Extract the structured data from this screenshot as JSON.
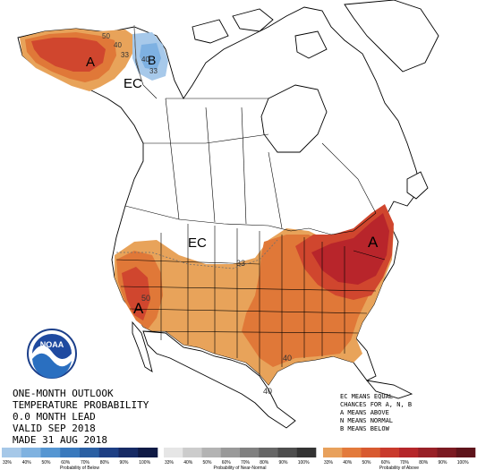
{
  "title_block": {
    "line1": "ONE-MONTH OUTLOOK",
    "line2": "TEMPERATURE PROBABILITY",
    "line3": "0.0 MONTH LEAD",
    "line4": "VALID SEP 2018",
    "line5": "MADE 31 AUG 2018"
  },
  "legend_text": {
    "line1": "EC MEANS EQUAL",
    "line2": "CHANCES FOR A, N, B",
    "line3": "A MEANS ABOVE",
    "line4": "N MEANS NORMAL",
    "line5": "B MEANS BELOW"
  },
  "logo": {
    "text": "NOAA"
  },
  "map_labels": {
    "alaska_above": "A",
    "alaska_below": "B",
    "alaska_ec": "EC",
    "conus_ec": "EC",
    "west_above": "A",
    "east_above": "A",
    "contour_50_ak": "50",
    "contour_40_ak": "40",
    "contour_33_ak": "33",
    "contour_33_ak_b": "33",
    "contour_40_akb": "40",
    "contour_33_conus": "33",
    "contour_50_west": "50",
    "contour_40_south": "40",
    "contour_40_texas": "40"
  },
  "colorbars": {
    "below": {
      "title": "Probability of Below",
      "ticks": [
        "33%",
        "40%",
        "50%",
        "60%",
        "70%",
        "80%",
        "90%",
        "100%"
      ],
      "colors": [
        "#a6c8e8",
        "#7fb2e0",
        "#5596d2",
        "#3979bd",
        "#2a5fa3",
        "#1d3f84",
        "#162a64",
        "#0f1a45"
      ]
    },
    "normal": {
      "title": "Probability of Near-Normal",
      "ticks": [
        "33%",
        "40%",
        "50%",
        "60%",
        "70%",
        "80%",
        "90%",
        "100%"
      ],
      "colors": [
        "#e6e6e6",
        "#cccccc",
        "#b3b3b3",
        "#999999",
        "#808080",
        "#666666",
        "#4d4d4d",
        "#333333"
      ]
    },
    "above": {
      "title": "Probability of Above",
      "ticks": [
        "33%",
        "40%",
        "50%",
        "60%",
        "70%",
        "80%",
        "90%",
        "100%"
      ],
      "colors": [
        "#e8a15c",
        "#e37a3b",
        "#d85a30",
        "#c93a2c",
        "#b5262a",
        "#982027",
        "#7b1a22",
        "#5e141b"
      ]
    }
  },
  "colors": {
    "above_33": "#e8a35a",
    "above_40": "#e07838",
    "above_50": "#d0462e",
    "above_60": "#b8252b",
    "below_33": "#a7c9ea",
    "below_40": "#7eb1e2"
  }
}
